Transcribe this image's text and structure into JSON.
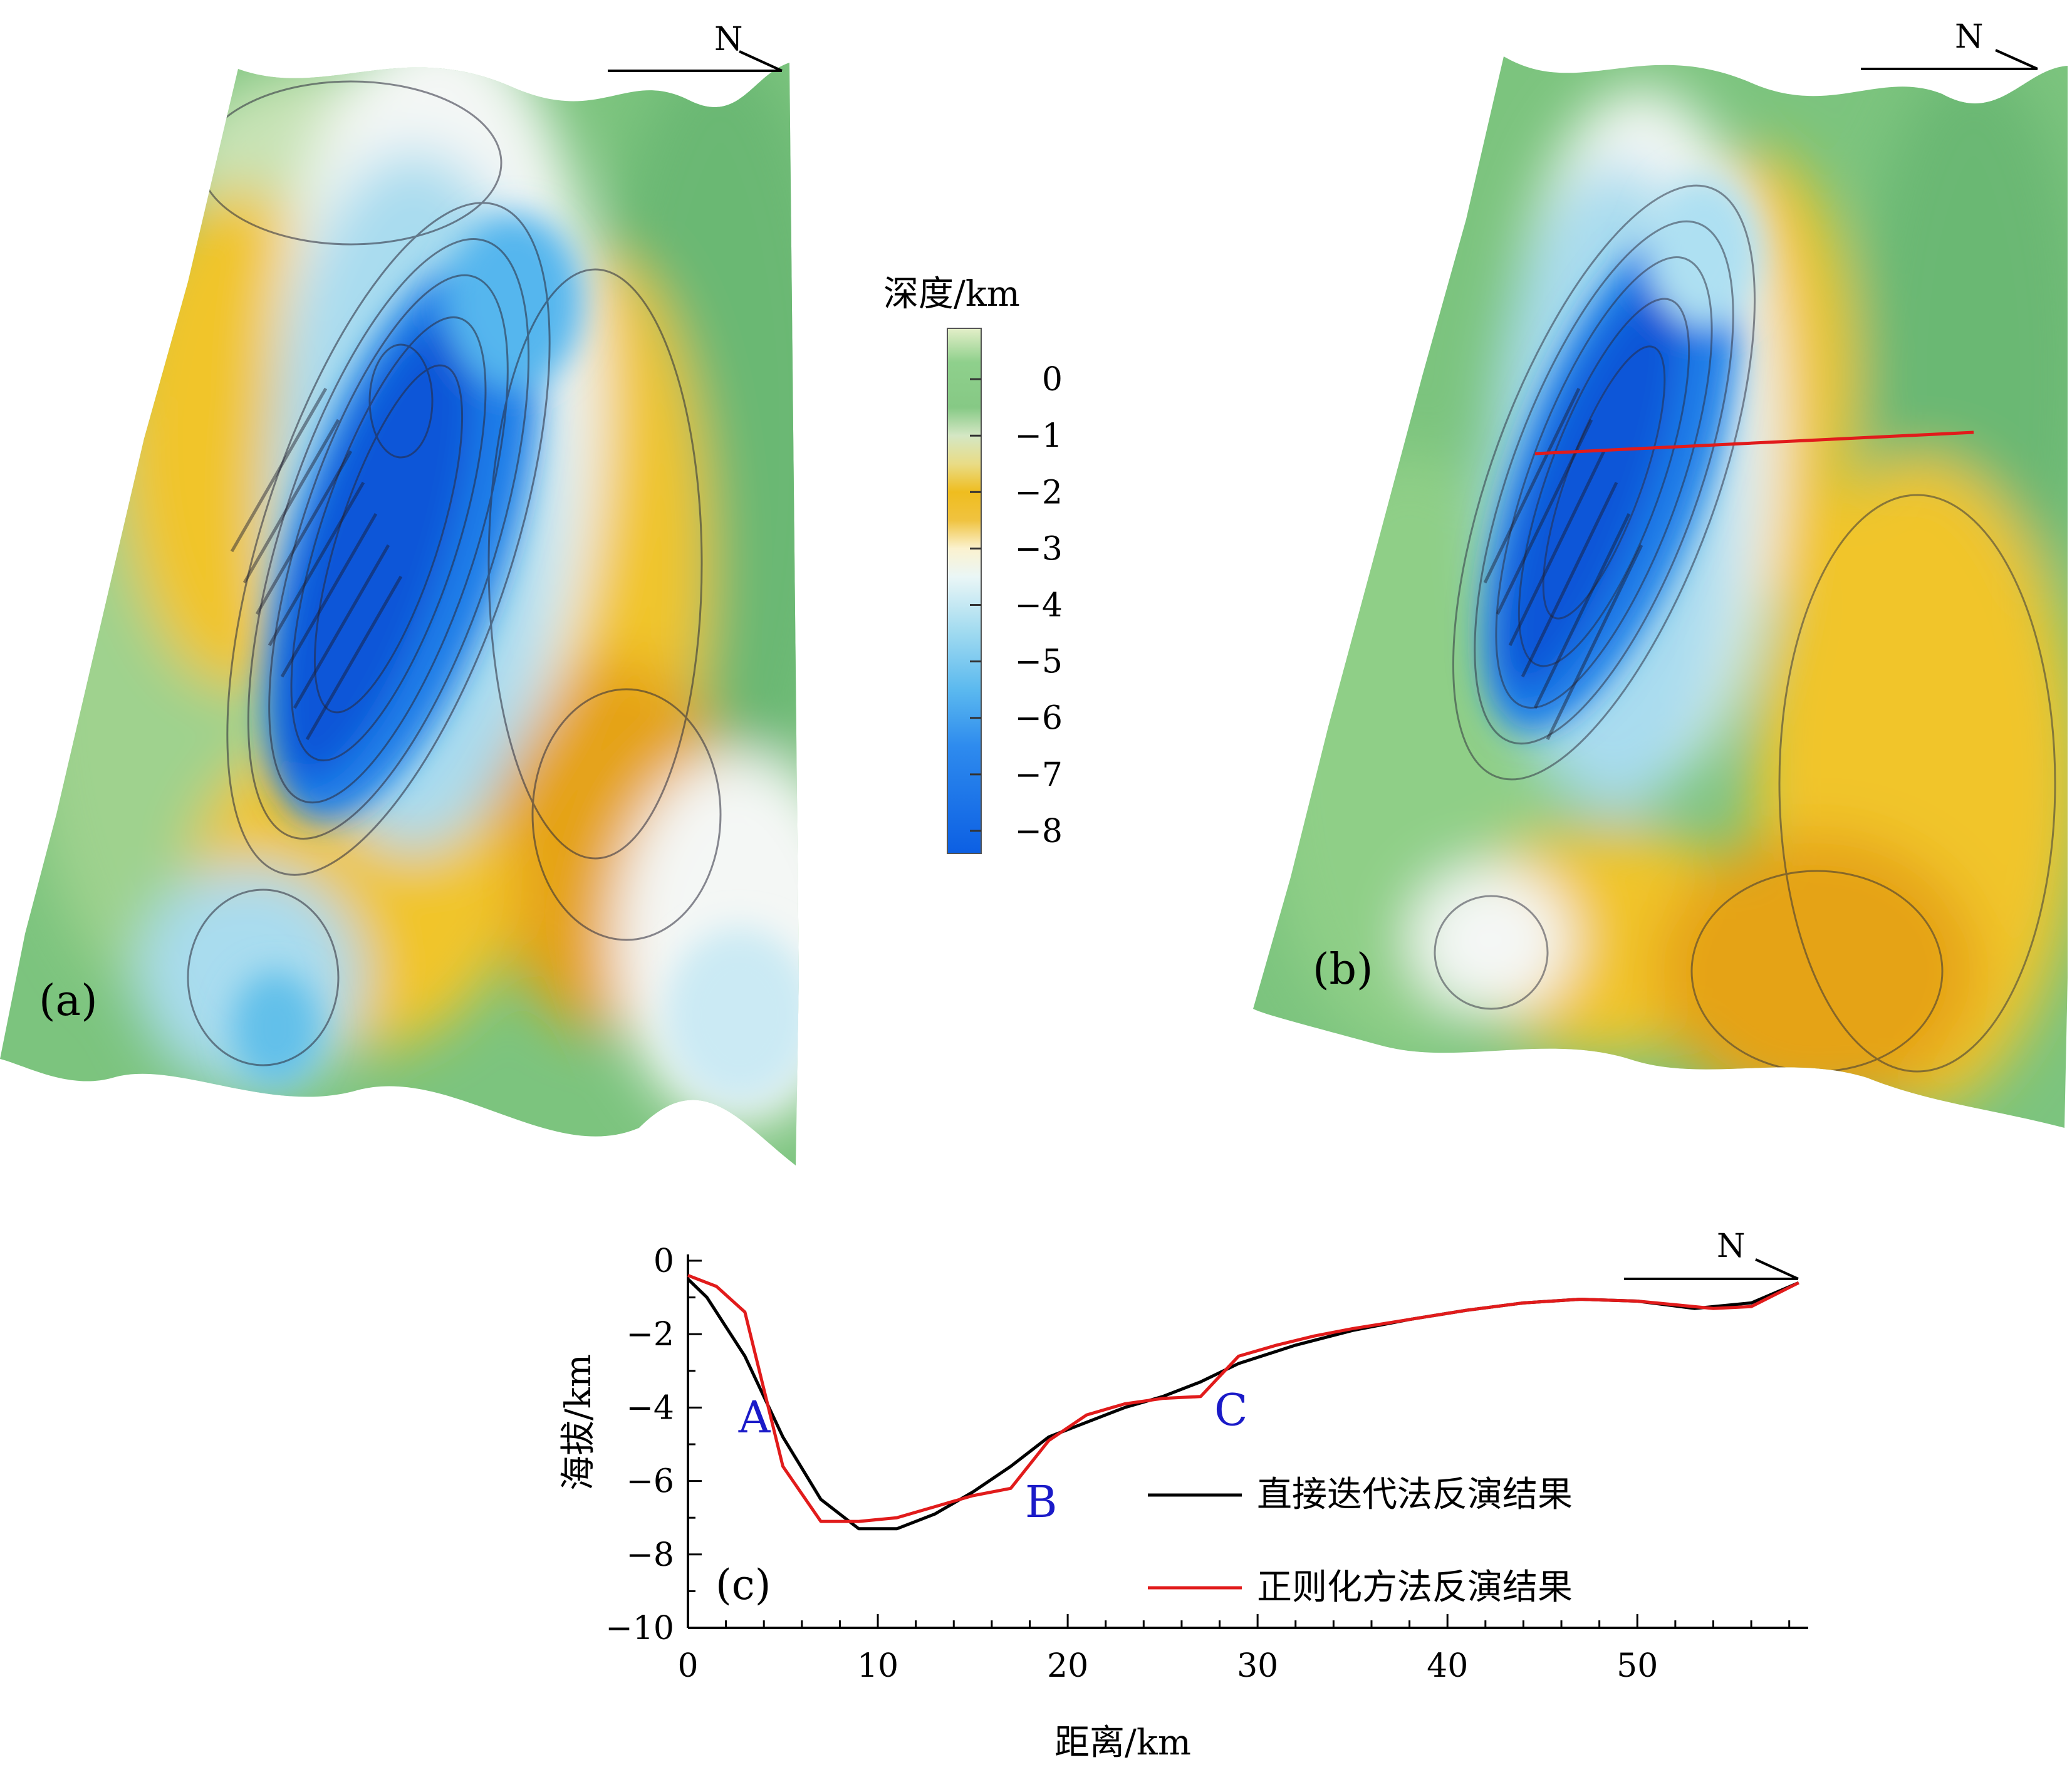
{
  "colors": {
    "green": "#7cc47e",
    "pale_green": "#c8e3b6",
    "yellow": "#f1c52a",
    "orange": "#e5a312",
    "white": "#f4f7f5",
    "light_blue": "#a9dcef",
    "blue": "#1f7de8",
    "deep_blue": "#0b57d8",
    "black_line": "#000000",
    "red_line": "#e11b1b",
    "profile_label": "#1a1ac8"
  },
  "north_label": "N",
  "panel_a": {
    "label": "(a)"
  },
  "panel_b": {
    "label": "(b)"
  },
  "colorbar": {
    "title": "深度/km",
    "ticks": [
      "0",
      "−1",
      "−2",
      "−3",
      "−4",
      "−5",
      "−6",
      "−7",
      "−8"
    ],
    "range": [
      -8.4,
      0.9
    ],
    "stops": [
      {
        "v": 0.9,
        "c": "#e4efc9"
      },
      {
        "v": 0.3,
        "c": "#8fd08c"
      },
      {
        "v": -0.5,
        "c": "#86c985"
      },
      {
        "v": -1.0,
        "c": "#d4e7c4"
      },
      {
        "v": -1.5,
        "c": "#e9dc86"
      },
      {
        "v": -2.0,
        "c": "#efbd1f"
      },
      {
        "v": -2.5,
        "c": "#f0c340"
      },
      {
        "v": -3.0,
        "c": "#fbf2cf"
      },
      {
        "v": -3.5,
        "c": "#eaf6f6"
      },
      {
        "v": -4.5,
        "c": "#9fdaf0"
      },
      {
        "v": -5.5,
        "c": "#5bb9ef"
      },
      {
        "v": -6.5,
        "c": "#2e8bee"
      },
      {
        "v": -8.4,
        "c": "#0c5fe3"
      }
    ]
  },
  "chart_data": {
    "type": "line",
    "panel_label": "(c)",
    "xlabel": "距离/km",
    "ylabel": "海拔/km",
    "xlim": [
      0,
      59
    ],
    "ylim": [
      -10,
      0
    ],
    "xticks": [
      0,
      10,
      20,
      30,
      40,
      50
    ],
    "yticks": [
      0,
      -2,
      -4,
      -6,
      -8,
      -10
    ],
    "legend_position": "lower-right",
    "series": [
      {
        "name": "直接迭代法反演结果",
        "color": "#000000",
        "x": [
          0,
          1,
          3,
          5,
          7,
          9,
          11,
          13,
          15,
          17,
          19,
          21,
          23,
          25,
          27,
          29,
          32,
          35,
          38,
          41,
          44,
          47,
          50,
          53,
          56,
          58.5
        ],
        "y": [
          -0.5,
          -1.0,
          -2.6,
          -4.8,
          -6.5,
          -7.3,
          -7.3,
          -6.9,
          -6.3,
          -5.6,
          -4.8,
          -4.4,
          -4.0,
          -3.7,
          -3.3,
          -2.8,
          -2.3,
          -1.9,
          -1.6,
          -1.35,
          -1.15,
          -1.05,
          -1.1,
          -1.3,
          -1.15,
          -0.6
        ]
      },
      {
        "name": "正则化方法反演结果",
        "color": "#e11b1b",
        "x": [
          0,
          1.5,
          3,
          4,
          5,
          7,
          9,
          11,
          13,
          15,
          17,
          19,
          21,
          23,
          25,
          27,
          29,
          31,
          33,
          35,
          38,
          41,
          44,
          47,
          50,
          54,
          56,
          58.5
        ],
        "y": [
          -0.4,
          -0.7,
          -1.4,
          -3.5,
          -5.6,
          -7.1,
          -7.1,
          -7.0,
          -6.7,
          -6.4,
          -6.2,
          -4.9,
          -4.2,
          -3.9,
          -3.75,
          -3.7,
          -2.6,
          -2.3,
          -2.05,
          -1.85,
          -1.6,
          -1.35,
          -1.15,
          -1.05,
          -1.1,
          -1.3,
          -1.25,
          -0.6
        ]
      }
    ],
    "annotations": [
      {
        "text": "A",
        "x": 3.5,
        "y": -4.3
      },
      {
        "text": "B",
        "x": 18.6,
        "y": -6.6
      },
      {
        "text": "C",
        "x": 28.6,
        "y": -4.1
      }
    ]
  }
}
